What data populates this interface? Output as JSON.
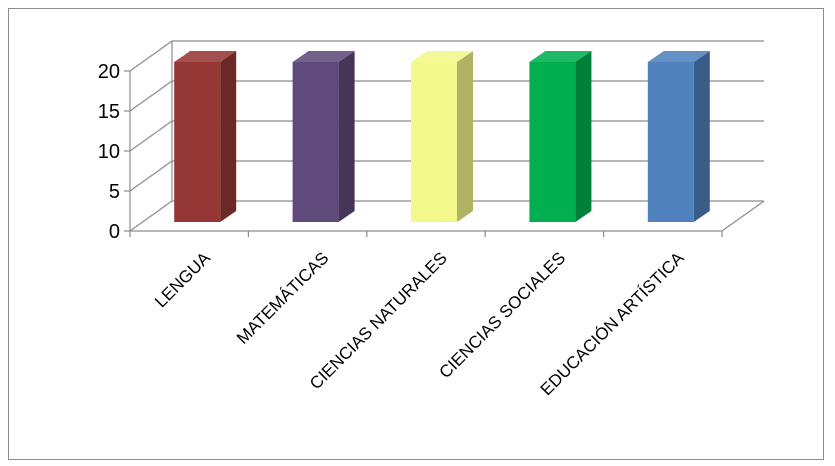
{
  "chart_data": {
    "type": "bar",
    "style": "3d-column",
    "categories": [
      "LENGUA",
      "MATEMÁTICAS",
      "CIENCIAS NATURALES",
      "CIENCIAS SOCIALES",
      "EDUCACIÓN ARTÍSTICA"
    ],
    "values": [
      20,
      20,
      20,
      20,
      20
    ],
    "colors": [
      "#953735",
      "#604a7b",
      "#f3f88a",
      "#00b050",
      "#4f81bd"
    ],
    "title": "",
    "xlabel": "",
    "ylabel": "",
    "ylim": [
      0,
      20
    ],
    "yticks": [
      "0",
      "5",
      "10",
      "15",
      "20"
    ],
    "grid": true,
    "legend": "none"
  }
}
